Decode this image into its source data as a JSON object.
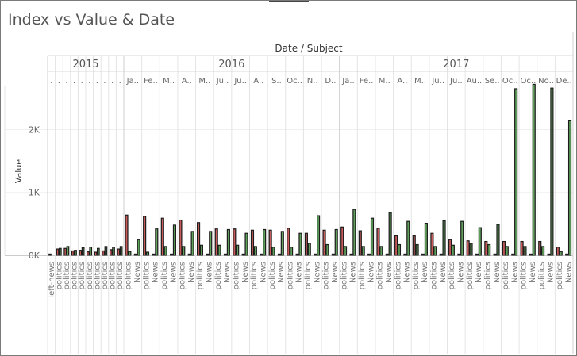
{
  "title": "Index vs Value & Date",
  "header_label": "Date / Subject",
  "years": [
    "2015",
    "2016",
    "2017"
  ],
  "y_axis_label": "Value",
  "y_ticks": [
    "0K",
    "1K",
    "2K"
  ],
  "colors": {
    "red": "#c95a5a",
    "green": "#5fa05a",
    "outline": "#1c1c1c"
  },
  "chart_data": {
    "type": "bar",
    "ylabel": "Value",
    "ylim": [
      0,
      2700
    ],
    "columns": [
      {
        "year": "2015",
        "month": ".",
        "categories": [
          "left-news"
        ],
        "values": [
          [
            20,
            0
          ]
        ]
      },
      {
        "year": "2015",
        "month": ".",
        "categories": [
          "politics"
        ],
        "values": [
          [
            100,
            110
          ]
        ]
      },
      {
        "year": "2015",
        "month": ".",
        "categories": [
          "politics"
        ],
        "values": [
          [
            110,
            140
          ]
        ]
      },
      {
        "year": "2015",
        "month": ".",
        "categories": [
          "politics"
        ],
        "values": [
          [
            70,
            80
          ]
        ]
      },
      {
        "year": "2015",
        "month": ".",
        "categories": [
          "politics"
        ],
        "values": [
          [
            80,
            120
          ]
        ]
      },
      {
        "year": "2015",
        "month": ".",
        "categories": [
          "politics"
        ],
        "values": [
          [
            60,
            130
          ]
        ]
      },
      {
        "year": "2015",
        "month": ".",
        "categories": [
          "politics"
        ],
        "values": [
          [
            50,
            110
          ]
        ]
      },
      {
        "year": "2015",
        "month": ".",
        "categories": [
          "politics"
        ],
        "values": [
          [
            70,
            140
          ]
        ]
      },
      {
        "year": "2015",
        "month": ".",
        "categories": [
          "politics"
        ],
        "values": [
          [
            90,
            130
          ]
        ]
      },
      {
        "year": "2015",
        "month": ".",
        "categories": [
          "politics"
        ],
        "values": [
          [
            100,
            140
          ]
        ]
      },
      {
        "year": "2016",
        "month": "Ja..",
        "categories": [
          "politics",
          "News"
        ],
        "values": [
          [
            640,
            60
          ],
          [
            20,
            250
          ]
        ]
      },
      {
        "year": "2016",
        "month": "Fe..",
        "categories": [
          "politics",
          "News"
        ],
        "values": [
          [
            620,
            50
          ],
          [
            20,
            420
          ]
        ]
      },
      {
        "year": "2016",
        "month": "M..",
        "categories": [
          "politics",
          "News"
        ],
        "values": [
          [
            590,
            140
          ],
          [
            20,
            480
          ]
        ]
      },
      {
        "year": "2016",
        "month": "A..",
        "categories": [
          "politics",
          "News"
        ],
        "values": [
          [
            560,
            140
          ],
          [
            20,
            380
          ]
        ]
      },
      {
        "year": "2016",
        "month": "M..",
        "categories": [
          "politics",
          "News"
        ],
        "values": [
          [
            520,
            160
          ],
          [
            20,
            380
          ]
        ]
      },
      {
        "year": "2016",
        "month": "Ju..",
        "categories": [
          "politics",
          "News"
        ],
        "values": [
          [
            420,
            160
          ],
          [
            20,
            410
          ]
        ]
      },
      {
        "year": "2016",
        "month": "Ju..",
        "categories": [
          "politics",
          "News"
        ],
        "values": [
          [
            420,
            160
          ],
          [
            20,
            350
          ]
        ]
      },
      {
        "year": "2016",
        "month": "A..",
        "categories": [
          "politics",
          "News"
        ],
        "values": [
          [
            400,
            140
          ],
          [
            20,
            410
          ]
        ]
      },
      {
        "year": "2016",
        "month": "S..",
        "categories": [
          "politics",
          "News"
        ],
        "values": [
          [
            400,
            130
          ],
          [
            20,
            380
          ]
        ]
      },
      {
        "year": "2016",
        "month": "Oc..",
        "categories": [
          "politics",
          "News"
        ],
        "values": [
          [
            430,
            130
          ],
          [
            20,
            350
          ]
        ]
      },
      {
        "year": "2016",
        "month": "N..",
        "categories": [
          "politics",
          "News"
        ],
        "values": [
          [
            350,
            190
          ],
          [
            20,
            630
          ]
        ]
      },
      {
        "year": "2016",
        "month": "D..",
        "categories": [
          "politics",
          "News"
        ],
        "values": [
          [
            400,
            170
          ],
          [
            20,
            410
          ]
        ]
      },
      {
        "year": "2017",
        "month": "Ja..",
        "categories": [
          "politics",
          "News"
        ],
        "values": [
          [
            450,
            140
          ],
          [
            20,
            730
          ]
        ]
      },
      {
        "year": "2017",
        "month": "Fe..",
        "categories": [
          "politics",
          "News"
        ],
        "values": [
          [
            390,
            140
          ],
          [
            20,
            590
          ]
        ]
      },
      {
        "year": "2017",
        "month": "M..",
        "categories": [
          "politics",
          "News"
        ],
        "values": [
          [
            430,
            140
          ],
          [
            20,
            680
          ]
        ]
      },
      {
        "year": "2017",
        "month": "A..",
        "categories": [
          "politics",
          "News"
        ],
        "values": [
          [
            310,
            170
          ],
          [
            20,
            540
          ]
        ]
      },
      {
        "year": "2017",
        "month": "M..",
        "categories": [
          "politics",
          "News"
        ],
        "values": [
          [
            310,
            170
          ],
          [
            20,
            510
          ]
        ]
      },
      {
        "year": "2017",
        "month": "Ju..",
        "categories": [
          "politics",
          "News"
        ],
        "values": [
          [
            350,
            140
          ],
          [
            20,
            550
          ]
        ]
      },
      {
        "year": "2017",
        "month": "Ju..",
        "categories": [
          "politics",
          "News"
        ],
        "values": [
          [
            250,
            160
          ],
          [
            20,
            540
          ]
        ]
      },
      {
        "year": "2017",
        "month": "Au..",
        "categories": [
          "politics",
          "News"
        ],
        "values": [
          [
            230,
            190
          ],
          [
            20,
            440
          ]
        ]
      },
      {
        "year": "2017",
        "month": "Se..",
        "categories": [
          "politics",
          "News"
        ],
        "values": [
          [
            220,
            170
          ],
          [
            20,
            490
          ]
        ]
      },
      {
        "year": "2017",
        "month": "Oc..",
        "categories": [
          "politics",
          "News"
        ],
        "values": [
          [
            220,
            140
          ],
          [
            20,
            2650
          ]
        ]
      },
      {
        "year": "2017",
        "month": "Oc..",
        "categories": [
          "politics",
          "News"
        ],
        "values": [
          [
            220,
            140
          ],
          [
            20,
            2720
          ]
        ]
      },
      {
        "year": "2017",
        "month": "No..",
        "categories": [
          "politics",
          "News"
        ],
        "values": [
          [
            220,
            140
          ],
          [
            20,
            2660
          ]
        ]
      },
      {
        "year": "2017",
        "month": "De..",
        "categories": [
          "politics",
          "News"
        ],
        "values": [
          [
            130,
            60
          ],
          [
            20,
            2150
          ]
        ]
      }
    ]
  }
}
